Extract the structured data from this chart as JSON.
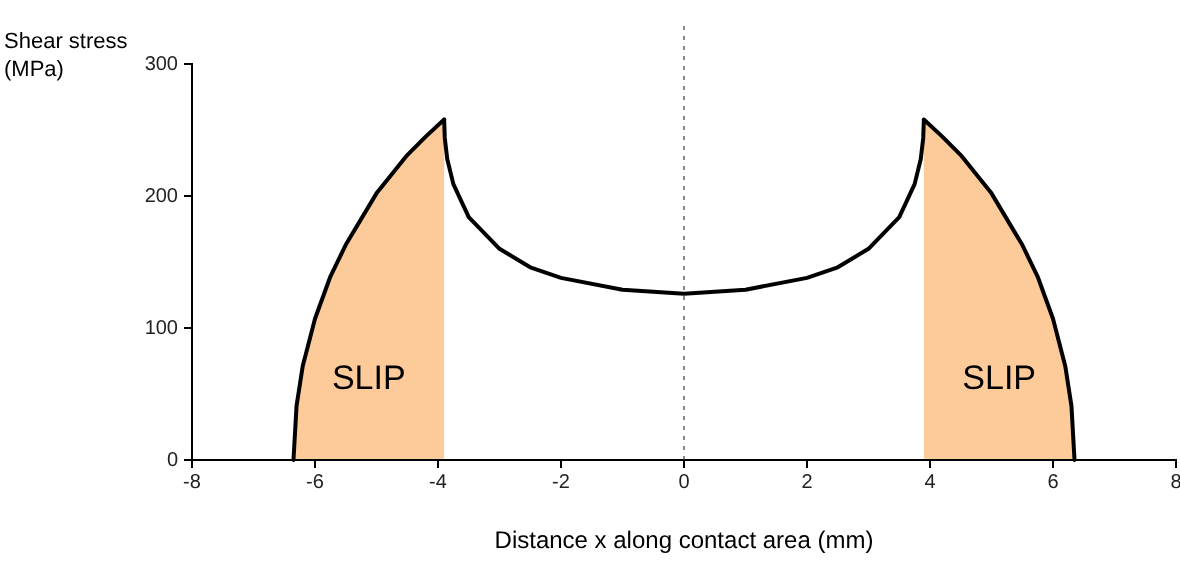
{
  "chart_data": {
    "type": "line",
    "xlabel": "Distance x along contact area (mm)",
    "ylabel": "Shear stress\n(MPa)",
    "xlim": [
      -8,
      8
    ],
    "xticks": [
      -8,
      -6,
      -4,
      -2,
      0,
      2,
      4,
      6,
      8
    ],
    "ylim": [
      0,
      300
    ],
    "yticks": [
      0,
      100,
      200,
      300
    ],
    "grid": false,
    "series": [
      {
        "type": "area",
        "color": "#fdca9a",
        "x": [
          -6.35,
          -6.3,
          -6.2,
          -6.0,
          -5.75,
          -5.5,
          -5.0,
          -4.5,
          -4.2,
          -3.9
        ],
        "values": [
          0,
          41,
          71,
          107,
          139,
          163,
          202,
          231,
          245,
          258
        ]
      },
      {
        "type": "area",
        "color": "#fdca9a",
        "x": [
          3.9,
          4.2,
          4.5,
          5.0,
          5.5,
          5.75,
          6.0,
          6.2,
          6.3,
          6.35
        ],
        "values": [
          258,
          245,
          231,
          202,
          163,
          139,
          107,
          71,
          41,
          0
        ]
      },
      {
        "color": "#000000",
        "line_style": "solid",
        "marker": "none",
        "x": [
          -6.35,
          -6.3,
          -6.2,
          -6.0,
          -5.75,
          -5.5,
          -5.0,
          -4.5,
          -4.2,
          -3.9,
          -3.89,
          -3.85,
          -3.75,
          -3.5,
          -3.0,
          -2.5,
          -2.0,
          -1.0,
          0,
          1.0,
          2.0,
          2.5,
          3.0,
          3.5,
          3.75,
          3.85,
          3.89,
          3.9,
          4.2,
          4.5,
          5.0,
          5.5,
          5.75,
          6.0,
          6.2,
          6.3,
          6.35
        ],
        "values": [
          0,
          41,
          71,
          107,
          139,
          163,
          202,
          231,
          245,
          258,
          244,
          228,
          209,
          184,
          160,
          146,
          138,
          129,
          126,
          129,
          138,
          146,
          160,
          184,
          209,
          228,
          244,
          258,
          245,
          231,
          202,
          163,
          139,
          107,
          71,
          41,
          0
        ]
      }
    ],
    "ref_lines": [
      {
        "axis": "x",
        "value": 0,
        "color": "#888888",
        "line_style": "dotted"
      }
    ],
    "annotations": [
      "SLIP",
      "SLIP"
    ]
  }
}
